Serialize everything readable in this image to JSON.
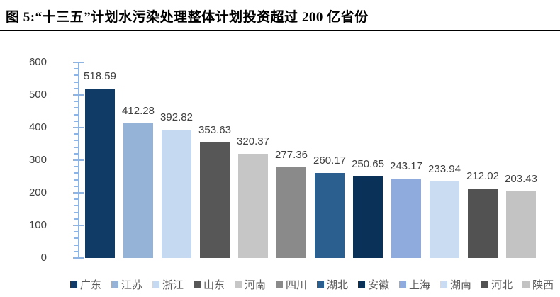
{
  "title": "图 5:“十三五”计划水污染处理整体计划投资超过 200 亿省份",
  "chart_data": {
    "type": "bar",
    "title": "图 5:“十三五”计划水污染处理整体计划投资超过 200 亿省份",
    "categories": [
      "广东",
      "江苏",
      "浙江",
      "山东",
      "河南",
      "四川",
      "湖北",
      "安徽",
      "上海",
      "湖南",
      "河北",
      "陕西"
    ],
    "values": [
      518.59,
      412.28,
      392.82,
      353.63,
      320.37,
      277.36,
      260.17,
      250.65,
      243.17,
      233.94,
      212.02,
      203.43
    ],
    "value_labels": [
      "518.59",
      "412.28",
      "392.82",
      "353.63",
      "320.37",
      "277.36",
      "260.17",
      "250.65",
      "243.17",
      "233.94",
      "212.02",
      "203.43"
    ],
    "bar_colors": [
      "#0F3B66",
      "#95B3D7",
      "#C5D9F1",
      "#575757",
      "#C6C6C6",
      "#8A8A8A",
      "#2B5F90",
      "#0A3157",
      "#8FAADC",
      "#C9DCF2",
      "#525252",
      "#C3C3C3"
    ],
    "xlabel": "",
    "ylabel": "",
    "ylim": [
      0,
      600
    ],
    "y_major_tick": 100,
    "y_minor_tick": 20,
    "y_tick_labels": [
      "0",
      "100",
      "200",
      "300",
      "400",
      "500",
      "600"
    ],
    "grid": false,
    "legend_position": "bottom",
    "axis_color": "#8DB4E2",
    "value_label_color": "#404040",
    "legend_text_color": "#595959"
  }
}
